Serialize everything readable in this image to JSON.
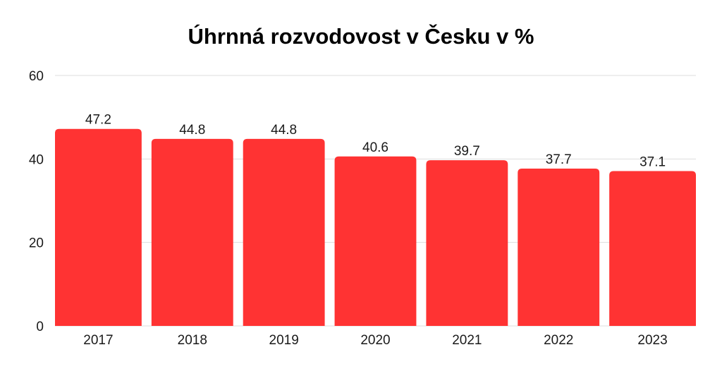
{
  "chart_data": {
    "type": "bar",
    "title": "Úhrnná rozvodovost v Česku v %",
    "categories": [
      "2017",
      "2018",
      "2019",
      "2020",
      "2021",
      "2022",
      "2023"
    ],
    "values": [
      47.2,
      44.8,
      44.8,
      40.6,
      39.7,
      37.7,
      37.1
    ],
    "data_labels": [
      "47.2",
      "44.8",
      "44.8",
      "40.6",
      "39.7",
      "37.7",
      "37.1"
    ],
    "ylim": [
      0,
      60
    ],
    "yticks": [
      0,
      20,
      40,
      60
    ],
    "ytick_labels": [
      "0",
      "20",
      "40",
      "60"
    ],
    "xlabel": "",
    "ylabel": "",
    "grid": true,
    "bar_color": "#ff3333",
    "grid_color": "#dddddd"
  }
}
